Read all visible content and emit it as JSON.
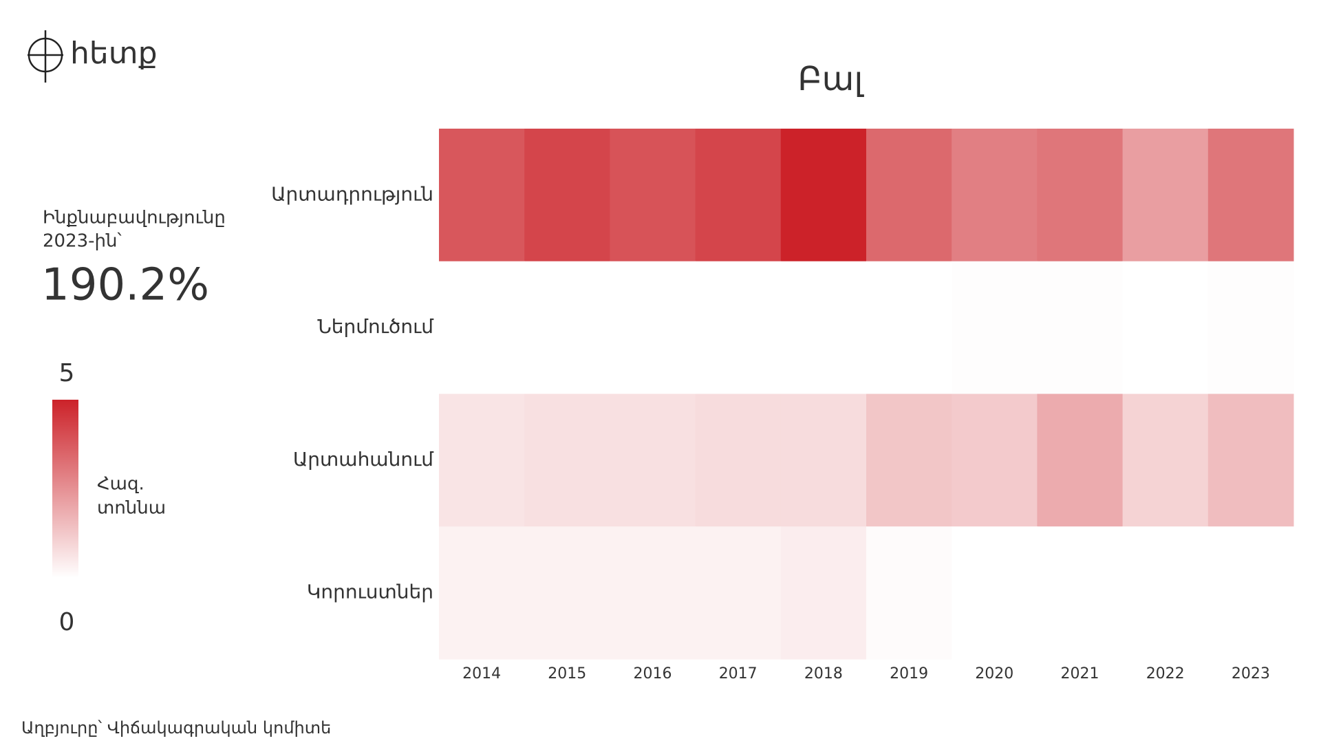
{
  "chart_data": {
    "type": "heatmap",
    "title": "Բալ",
    "logo": "հետք",
    "headline_label": [
      "Ինքնաբավությունը",
      "2023-ին՝"
    ],
    "headline_value": "190.2%",
    "source": "Աղբյուրը՝ Վիճակագրական կոմիտե",
    "rows": [
      "Արտադրություն",
      "Ներմուծում",
      "Արտահանում",
      "Կորուստներ"
    ],
    "categories": [
      2014,
      2015,
      2016,
      2017,
      2018,
      2019,
      2020,
      2021,
      2022,
      2023
    ],
    "values": [
      [
        3.8,
        4.2,
        3.9,
        4.2,
        5.0,
        3.4,
        2.9,
        3.1,
        2.2,
        3.1
      ],
      [
        0,
        0,
        0,
        0,
        0,
        0,
        0.05,
        0.05,
        0,
        0.05
      ],
      [
        0.6,
        0.7,
        0.7,
        0.8,
        0.8,
        1.3,
        1.2,
        1.9,
        1.0,
        1.5
      ],
      [
        0.3,
        0.3,
        0.3,
        0.3,
        0.4,
        0.1,
        0,
        0,
        0,
        0
      ]
    ],
    "color_low": "#ffffff",
    "color_high": "#cc2229",
    "colorbar_title": [
      "Հազ.",
      "տոննա"
    ],
    "clim": [
      0,
      5
    ],
    "cticks": [
      0,
      5
    ]
  }
}
